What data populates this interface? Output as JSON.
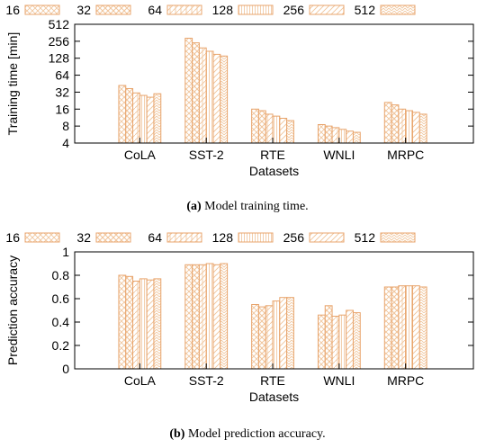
{
  "charts": [
    {
      "caption_label": "(a)",
      "caption_text": "Model training time."
    },
    {
      "caption_label": "(b)",
      "caption_text": "Model prediction accuracy."
    }
  ],
  "style": {
    "bar_stroke": "#e8a46c",
    "hatch_color": "#f0c49a",
    "axis_color": "#000000"
  },
  "chart_data": [
    {
      "type": "bar",
      "ylabel": "Training time [min]",
      "xlabel": "Datasets",
      "yscale": "log2",
      "ylim": [
        4,
        512
      ],
      "yticks": [
        4,
        8,
        16,
        32,
        64,
        128,
        256,
        512
      ],
      "ytick_labels": [
        "4",
        "8",
        "16",
        "32",
        "64",
        "128",
        "256",
        "512"
      ],
      "categories": [
        "CoLA",
        "SST-2",
        "RTE",
        "WNLI",
        "MRPC"
      ],
      "legend_position": "top",
      "grid": false,
      "series": [
        {
          "name": "16",
          "values": [
            42,
            290,
            16,
            8.5,
            21
          ]
        },
        {
          "name": "32",
          "values": [
            37,
            240,
            15,
            8.0,
            19
          ]
        },
        {
          "name": "64",
          "values": [
            31,
            195,
            13,
            7.5,
            16
          ]
        },
        {
          "name": "128",
          "values": [
            28,
            170,
            12,
            7.0,
            15
          ]
        },
        {
          "name": "256",
          "values": [
            26,
            150,
            11,
            6.5,
            14
          ]
        },
        {
          "name": "512",
          "values": [
            30,
            140,
            10,
            6.2,
            13
          ]
        }
      ]
    },
    {
      "type": "bar",
      "ylabel": "Prediction accuracy",
      "xlabel": "Datasets",
      "ylim": [
        0,
        1
      ],
      "yticks": [
        0,
        0.2,
        0.4,
        0.6,
        0.8,
        1
      ],
      "ytick_labels": [
        "0",
        "0.2",
        "0.4",
        "0.6",
        "0.8",
        "1"
      ],
      "categories": [
        "CoLA",
        "SST-2",
        "RTE",
        "WNLI",
        "MRPC"
      ],
      "legend_position": "top",
      "grid": false,
      "series": [
        {
          "name": "16",
          "values": [
            0.8,
            0.89,
            0.55,
            0.46,
            0.7
          ]
        },
        {
          "name": "32",
          "values": [
            0.79,
            0.89,
            0.53,
            0.54,
            0.7
          ]
        },
        {
          "name": "64",
          "values": [
            0.75,
            0.89,
            0.54,
            0.45,
            0.71
          ]
        },
        {
          "name": "128",
          "values": [
            0.77,
            0.9,
            0.58,
            0.46,
            0.71
          ]
        },
        {
          "name": "256",
          "values": [
            0.76,
            0.89,
            0.61,
            0.5,
            0.71
          ]
        },
        {
          "name": "512",
          "values": [
            0.77,
            0.9,
            0.61,
            0.48,
            0.7
          ]
        }
      ]
    }
  ]
}
